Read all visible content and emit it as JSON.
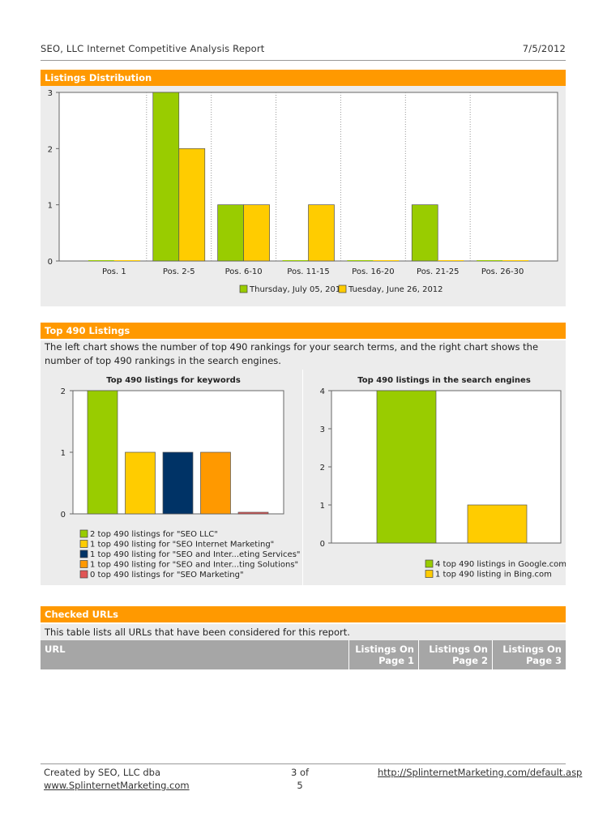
{
  "header": {
    "title": "SEO, LLC Internet Competitive Analysis Report",
    "date": "7/5/2012"
  },
  "sections": {
    "distribution_title": "Listings Distribution",
    "top_title": "Top 490 Listings",
    "top_desc": "The left chart shows the number of top 490 rankings for your search terms, and the right chart shows the number of top 490 rankings in the search engines.",
    "checked_title": "Checked URLs",
    "checked_desc": "This table lists all URLs that have been considered for this report."
  },
  "table": {
    "col_url": "URL",
    "col_p1_a": "Listings On",
    "col_p1_b": "Page 1",
    "col_p2_a": "Listings On",
    "col_p2_b": "Page 2",
    "col_p3_a": "Listings On",
    "col_p3_b": "Page 3"
  },
  "footer": {
    "left_line1": "Created by SEO, LLC dba",
    "left_line2": "www.SplinternetMarketing.com",
    "page_line1": "3 of",
    "page_line2": "5",
    "right_link": "http://SplinternetMarketing.com/default.asp"
  },
  "colors": {
    "green": "#99cc00",
    "yellow": "#ffcc00",
    "navy": "#003366",
    "orange": "#ff9900",
    "red": "#e05555",
    "accent": "#ff9900"
  },
  "chart_data": [
    {
      "type": "bar",
      "categories": [
        "Pos. 1",
        "Pos. 2-5",
        "Pos. 6-10",
        "Pos. 11-15",
        "Pos. 16-20",
        "Pos. 21-25",
        "Pos. 26-30"
      ],
      "series": [
        {
          "name": "Thursday, July 05, 2012",
          "color": "#99cc00",
          "values": [
            0,
            3,
            1,
            0,
            0,
            1,
            0
          ]
        },
        {
          "name": "Tuesday, June 26, 2012",
          "color": "#ffcc00",
          "values": [
            0,
            2,
            1,
            1,
            0,
            0,
            0
          ]
        }
      ],
      "yticks": [
        0,
        1,
        2,
        3
      ],
      "ylim": [
        0,
        3
      ],
      "legend": "bottom",
      "grid": "vertical-dotted"
    },
    {
      "type": "bar",
      "title": "Top 490 listings for keywords",
      "values": [
        2,
        1,
        1,
        1,
        0
      ],
      "colors": [
        "#99cc00",
        "#ffcc00",
        "#003366",
        "#ff9900",
        "#e05555"
      ],
      "legend_labels": [
        "2 top 490 listings for \"SEO LLC\"",
        "1 top 490 listing for \"SEO Internet Marketing\"",
        "1 top 490 listing for \"SEO and Inter...eting Services\"",
        "1 top 490 listing for \"SEO and Inter...ting Solutions\"",
        "0 top 490 listings for \"SEO Marketing\""
      ],
      "yticks": [
        0,
        1,
        2
      ],
      "ylim": [
        0,
        2
      ],
      "legend": "bottom"
    },
    {
      "type": "bar",
      "title": "Top 490 listings in the search engines",
      "values": [
        4,
        1
      ],
      "colors": [
        "#99cc00",
        "#ffcc00"
      ],
      "legend_labels": [
        "4 top 490 listings in Google.com",
        "1 top 490 listing in Bing.com"
      ],
      "yticks": [
        0,
        1,
        2,
        3,
        4
      ],
      "ylim": [
        0,
        4
      ],
      "legend": "bottom"
    }
  ]
}
